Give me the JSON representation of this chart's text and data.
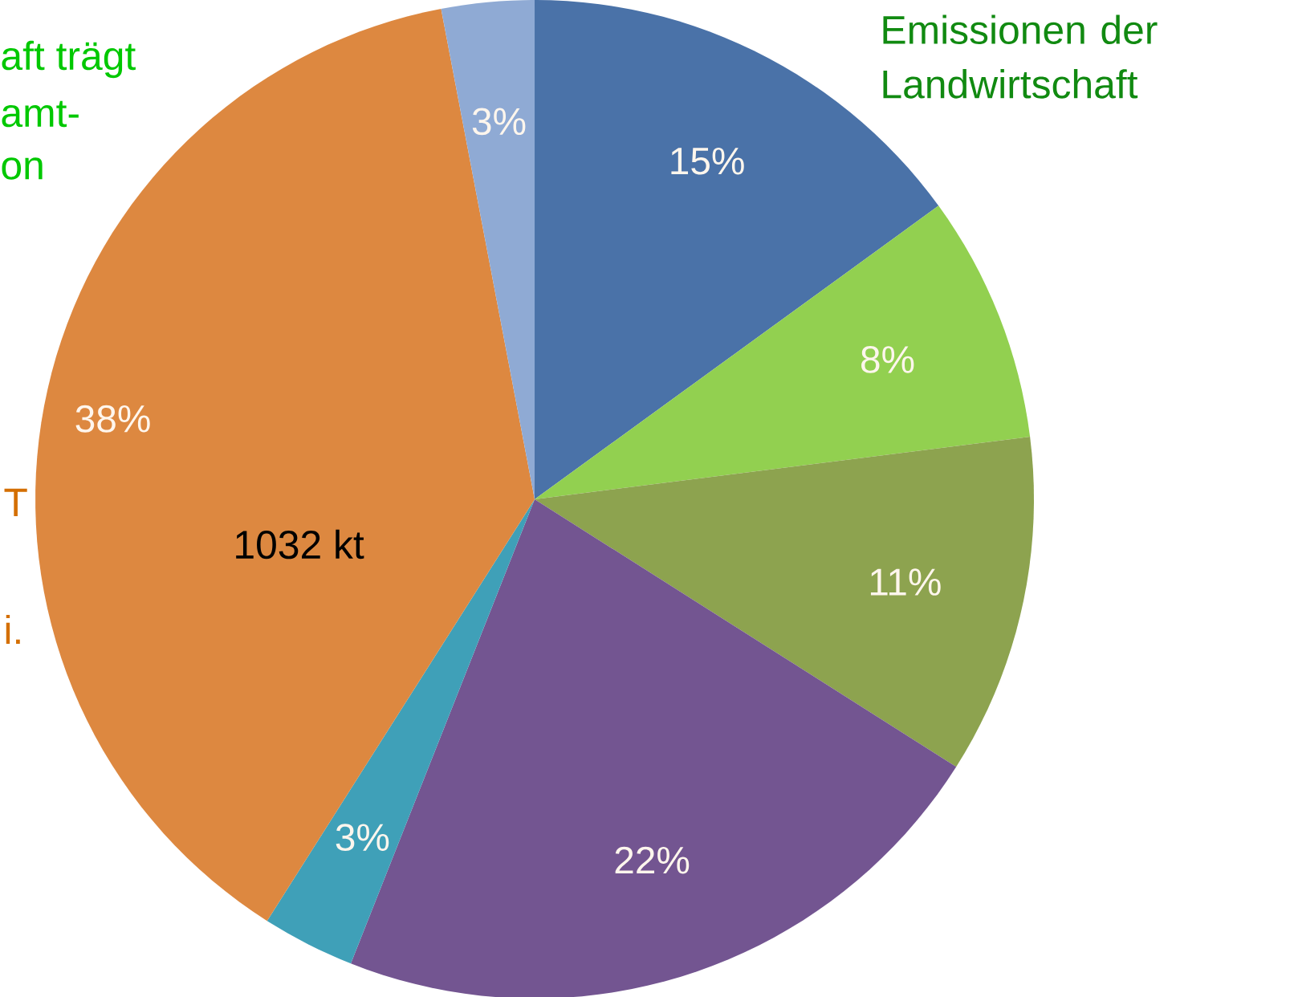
{
  "chart_data": {
    "type": "pie",
    "title": "Emissionen der Landwirtschaft",
    "categories": [
      null,
      null,
      null,
      null,
      null,
      null,
      null
    ],
    "values": [
      15,
      8,
      11,
      22,
      3,
      38,
      3
    ],
    "colors": [
      "#4a72a8",
      "#92d050",
      "#8da34f",
      "#735591",
      "#3fa0b8",
      "#dd8840",
      "#8faad4"
    ],
    "value_labels": [
      "15%",
      "8%",
      "11%",
      "22%",
      "3%",
      "38%",
      "3%"
    ],
    "annotations": [
      "aft trägt",
      "amt-",
      "on",
      "T",
      "i.",
      "1032 kt"
    ]
  }
}
